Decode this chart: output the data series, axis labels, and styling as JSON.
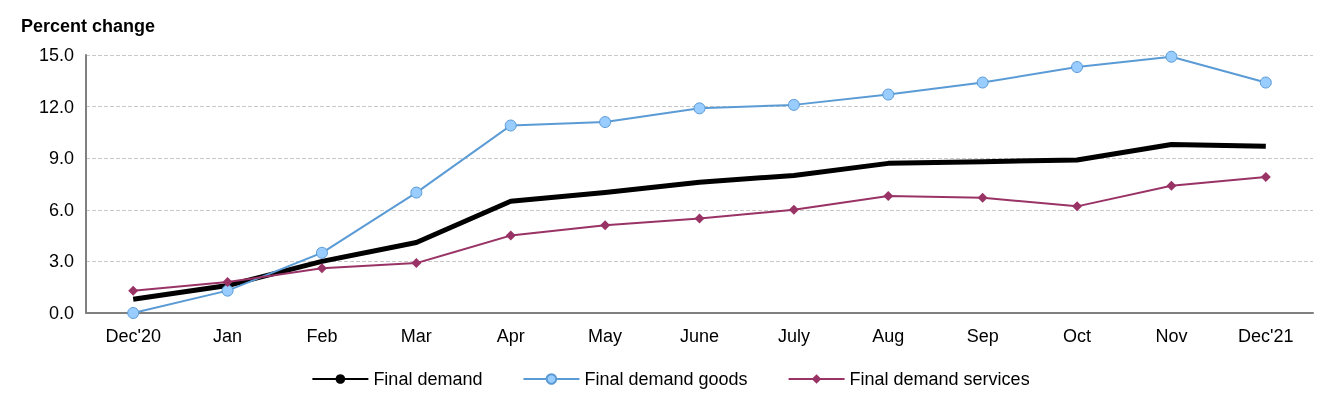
{
  "chart_data": {
    "type": "line",
    "ylabel": "Percent change",
    "categories": [
      "Dec'20",
      "Jan",
      "Feb",
      "Mar",
      "Apr",
      "May",
      "June",
      "July",
      "Aug",
      "Sep",
      "Oct",
      "Nov",
      "Dec'21"
    ],
    "series": [
      {
        "name": "Final demand",
        "color": "#000000",
        "marker": "none",
        "values": [
          0.8,
          1.6,
          3.0,
          4.1,
          6.5,
          7.0,
          7.6,
          8.0,
          8.7,
          8.8,
          8.9,
          9.8,
          9.7
        ]
      },
      {
        "name": "Final demand goods",
        "color": "#5b9bd5",
        "marker": "circle",
        "values": [
          0.0,
          1.3,
          3.5,
          7.0,
          10.9,
          11.1,
          11.9,
          12.1,
          12.7,
          13.4,
          14.3,
          14.9,
          13.4
        ]
      },
      {
        "name": "Final demand services",
        "color": "#993366",
        "marker": "diamond",
        "values": [
          1.3,
          1.8,
          2.6,
          2.9,
          4.5,
          5.1,
          5.5,
          6.0,
          6.8,
          6.7,
          6.2,
          7.4,
          7.9
        ]
      }
    ],
    "ylim": [
      0,
      15
    ],
    "yticks": [
      {
        "value": 0,
        "label": "0.0"
      },
      {
        "value": 3,
        "label": "3.0"
      },
      {
        "value": 6,
        "label": "6.0"
      },
      {
        "value": 9,
        "label": "9.0"
      },
      {
        "value": 12,
        "label": "12.0"
      },
      {
        "value": 15,
        "label": "15.0"
      }
    ],
    "grid": "y",
    "legend": "bottom"
  }
}
